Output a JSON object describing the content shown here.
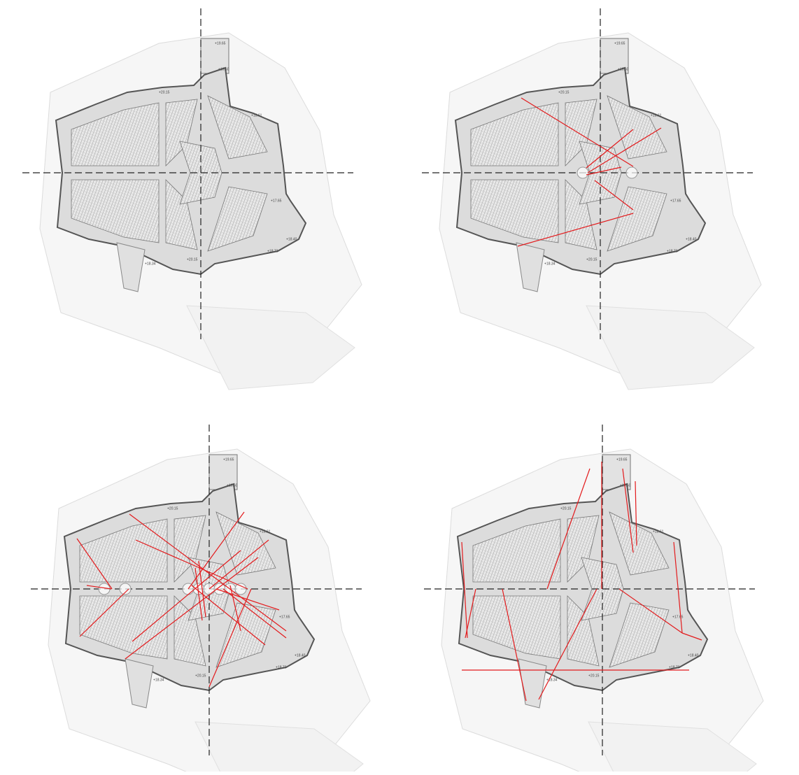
{
  "plan_labels": [
    "+19.65",
    "+19.60",
    "+20.15",
    "+18.61",
    "+17.65",
    "+18.40",
    "+18.73",
    "+18.34",
    "+20.15"
  ]
}
